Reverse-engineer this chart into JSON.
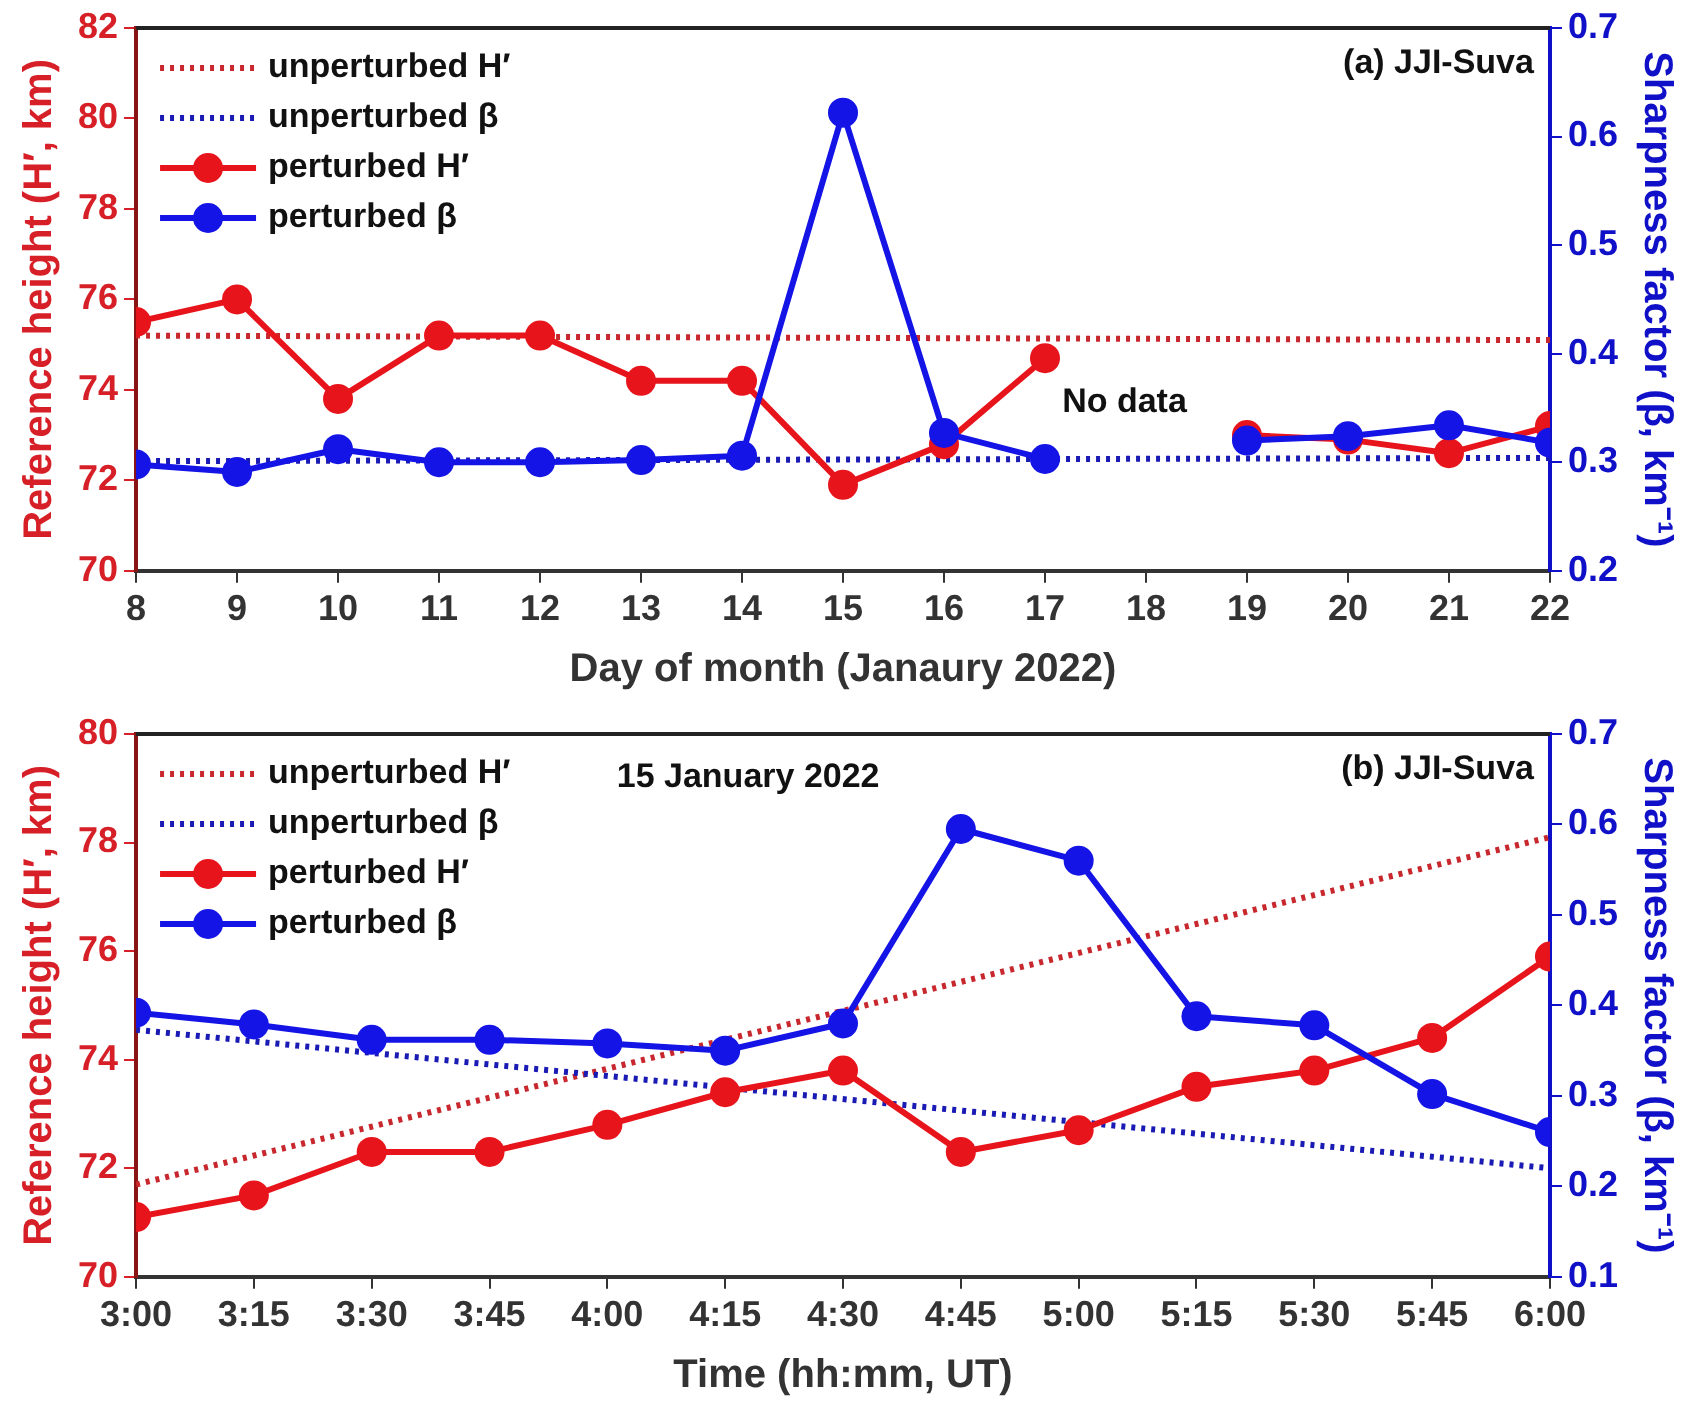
{
  "chart_data": [
    {
      "type": "line",
      "xlabel": "Day of month (Janaury 2022)",
      "ylabel": "Reference height (H′, km)",
      "y2label": "Sharpness factor (β, km⁻¹)",
      "xlim": [
        8,
        22
      ],
      "xticks": [
        8,
        9,
        10,
        11,
        12,
        13,
        14,
        15,
        16,
        17,
        18,
        19,
        20,
        21,
        22
      ],
      "ylim": [
        70,
        82
      ],
      "yticks": [
        70,
        72,
        74,
        76,
        78,
        80,
        82
      ],
      "y2lim": [
        0.2,
        0.7
      ],
      "y2ticks": [
        0.2,
        0.3,
        0.4,
        0.5,
        0.6,
        0.7
      ],
      "grid": false,
      "legend": "top left",
      "annotations": [
        "(a) JJI-Suva",
        "No data"
      ],
      "series": [
        {
          "name": "unperturbed H′",
          "color": "#c8282d",
          "x": [
            8,
            22
          ],
          "values": [
            75.2,
            75.1
          ],
          "marker": "none",
          "line_style": "dotted"
        },
        {
          "name": "unperturbed β",
          "color": "#1a1ab4",
          "x": [
            8,
            22
          ],
          "values": [
            0.301,
            0.304
          ],
          "marker": "none",
          "line_style": "dotted",
          "axis": "y2"
        },
        {
          "name": "perturbed H′",
          "color": "#e8141b",
          "x": [
            8,
            9,
            10,
            11,
            12,
            13,
            14,
            15,
            16,
            17,
            18,
            19,
            20,
            21,
            22
          ],
          "values": [
            75.5,
            76.0,
            73.8,
            75.2,
            75.2,
            74.2,
            74.2,
            71.9,
            72.8,
            74.7,
            null,
            73.0,
            72.9,
            72.6,
            73.2
          ],
          "marker": "circle",
          "line_style": "solid"
        },
        {
          "name": "perturbed β",
          "color": "#1414e6",
          "x": [
            8,
            9,
            10,
            11,
            12,
            13,
            14,
            15,
            16,
            17,
            18,
            19,
            20,
            21,
            22
          ],
          "values": [
            0.298,
            0.291,
            0.312,
            0.3,
            0.3,
            0.302,
            0.306,
            0.622,
            0.327,
            0.303,
            null,
            0.32,
            0.324,
            0.334,
            0.318
          ],
          "marker": "circle",
          "line_style": "solid",
          "axis": "y2"
        }
      ]
    },
    {
      "type": "line",
      "xlabel": "Time (hh:mm, UT)",
      "ylabel": "Reference height (H′, km)",
      "y2label": "Sharpness factor (β, km⁻¹)",
      "xlim": [
        3,
        6
      ],
      "xticks": [
        {
          "value": 3,
          "label": "3:00"
        },
        {
          "value": 3.25,
          "label": "3:15"
        },
        {
          "value": 3.5,
          "label": "3:30"
        },
        {
          "value": 3.75,
          "label": "3:45"
        },
        {
          "value": 4,
          "label": "4:00"
        },
        {
          "value": 4.25,
          "label": "4:15"
        },
        {
          "value": 4.5,
          "label": "4:30"
        },
        {
          "value": 4.75,
          "label": "4:45"
        },
        {
          "value": 5,
          "label": "5:00"
        },
        {
          "value": 5.25,
          "label": "5:15"
        },
        {
          "value": 5.5,
          "label": "5:30"
        },
        {
          "value": 5.75,
          "label": "5:45"
        },
        {
          "value": 6,
          "label": "6:00"
        }
      ],
      "ylim": [
        70,
        80
      ],
      "yticks": [
        70,
        72,
        74,
        76,
        78,
        80
      ],
      "y2lim": [
        0.1,
        0.7
      ],
      "y2ticks": [
        0.1,
        0.2,
        0.3,
        0.4,
        0.5,
        0.6,
        0.7
      ],
      "grid": false,
      "legend": "top left",
      "annotations": [
        "(b) JJI-Suva",
        "15 January 2022"
      ],
      "series": [
        {
          "name": "unperturbed H′",
          "color": "#c8282d",
          "x": [
            3,
            6
          ],
          "values": [
            71.7,
            78.1
          ],
          "marker": "none",
          "line_style": "dotted"
        },
        {
          "name": "unperturbed β",
          "color": "#1a1ab4",
          "x": [
            3,
            6
          ],
          "values": [
            0.373,
            0.22
          ],
          "marker": "none",
          "line_style": "dotted",
          "axis": "y2"
        },
        {
          "name": "perturbed H′",
          "color": "#e8141b",
          "x": [
            3,
            3.25,
            3.5,
            3.75,
            4,
            4.25,
            4.5,
            4.75,
            5,
            5.25,
            5.5,
            5.75,
            6
          ],
          "values": [
            71.1,
            71.5,
            72.3,
            72.3,
            72.8,
            73.4,
            73.8,
            72.3,
            72.7,
            73.5,
            73.8,
            74.4,
            75.9
          ],
          "marker": "circle",
          "line_style": "solid"
        },
        {
          "name": "perturbed β",
          "color": "#1414e6",
          "x": [
            3,
            3.25,
            3.5,
            3.75,
            4,
            4.25,
            4.5,
            4.75,
            5,
            5.25,
            5.5,
            5.75,
            6
          ],
          "values": [
            0.392,
            0.379,
            0.362,
            0.362,
            0.358,
            0.35,
            0.38,
            0.595,
            0.56,
            0.388,
            0.378,
            0.302,
            0.26
          ],
          "marker": "circle",
          "line_style": "solid",
          "axis": "y2"
        }
      ]
    }
  ]
}
